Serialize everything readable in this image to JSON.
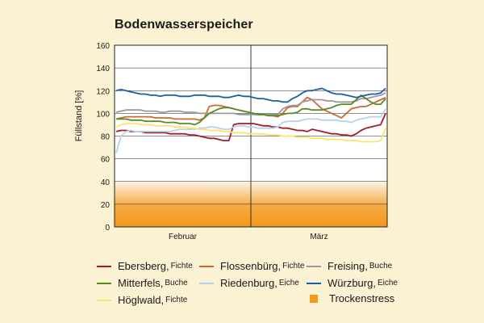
{
  "chart_data": {
    "type": "line",
    "title": "Bodenwasserspeicher",
    "ylabel": "Füllstand [%]",
    "xlabel": "",
    "ylim": [
      0,
      160
    ],
    "yticks": [
      0,
      20,
      40,
      60,
      80,
      100,
      120,
      140,
      160
    ],
    "grid": "horizontal",
    "months": [
      "Februar",
      "März"
    ],
    "x": [
      1,
      2,
      3,
      4,
      5,
      6,
      7,
      8,
      9,
      10,
      11,
      12,
      13,
      14,
      15,
      16,
      17,
      18,
      19,
      20,
      21,
      22,
      23,
      24,
      25,
      26,
      27,
      28,
      29,
      30,
      31,
      32,
      33,
      34,
      35,
      36,
      37,
      38,
      39,
      40,
      41,
      42,
      43,
      44,
      45,
      46,
      47,
      48,
      49,
      50,
      51,
      52,
      53,
      54,
      55,
      56
    ],
    "bands": [
      {
        "name": "Trockenstress",
        "color": "#f39a1e",
        "from": 0,
        "to": 40
      }
    ],
    "series": [
      {
        "name": "Ebersberg",
        "sub": "Fichte",
        "color": "#a6192e",
        "values": [
          84,
          85,
          85,
          84,
          84,
          84,
          83,
          83,
          83,
          83,
          83,
          82,
          82,
          82,
          82,
          81,
          81,
          80,
          79,
          78,
          78,
          77,
          76,
          76,
          90,
          91,
          91,
          91,
          91,
          90,
          89,
          89,
          88,
          88,
          87,
          87,
          86,
          85,
          85,
          84,
          86,
          85,
          84,
          83,
          82,
          82,
          81,
          81,
          80,
          82,
          85,
          87,
          88,
          89,
          90,
          100
        ]
      },
      {
        "name": "Flossenbürg",
        "sub": "Fichte",
        "color": "#cc6a2d",
        "values": [
          95,
          96,
          97,
          97,
          97,
          97,
          97,
          97,
          96,
          96,
          96,
          96,
          95,
          95,
          95,
          95,
          95,
          94,
          96,
          106,
          107,
          107,
          106,
          105,
          104,
          103,
          102,
          101,
          100,
          99,
          99,
          98,
          98,
          97,
          100,
          105,
          106,
          106,
          110,
          114,
          112,
          108,
          104,
          102,
          100,
          98,
          96,
          100,
          104,
          105,
          106,
          106,
          108,
          110,
          112,
          114
        ]
      },
      {
        "name": "Freising",
        "sub": "Buche",
        "color": "#999999",
        "values": [
          101,
          102,
          103,
          103,
          103,
          103,
          102,
          102,
          102,
          101,
          101,
          102,
          102,
          102,
          101,
          101,
          101,
          100,
          100,
          100,
          100,
          100,
          100,
          100,
          100,
          99,
          99,
          99,
          99,
          99,
          99,
          99,
          99,
          99,
          104,
          106,
          107,
          107,
          110,
          111,
          112,
          112,
          112,
          111,
          111,
          110,
          110,
          110,
          110,
          111,
          113,
          113,
          114,
          115,
          116,
          118
        ]
      },
      {
        "name": "Mitterfels",
        "sub": "Buche",
        "color": "#5a8a28",
        "values": [
          95,
          95,
          95,
          94,
          94,
          94,
          93,
          93,
          93,
          93,
          92,
          92,
          92,
          91,
          91,
          91,
          90,
          92,
          96,
          100,
          102,
          104,
          105,
          105,
          104,
          103,
          102,
          101,
          100,
          99,
          99,
          98,
          98,
          98,
          99,
          100,
          100,
          101,
          104,
          104,
          103,
          103,
          103,
          104,
          105,
          107,
          108,
          108,
          108,
          112,
          116,
          113,
          110,
          108,
          108,
          113
        ]
      },
      {
        "name": "Riedenburg",
        "sub": "Eiche",
        "color": "#b8d3e8",
        "values": [
          65,
          80,
          84,
          85,
          84,
          84,
          84,
          84,
          84,
          84,
          84,
          84,
          85,
          86,
          86,
          86,
          86,
          87,
          87,
          88,
          88,
          87,
          86,
          86,
          88,
          89,
          89,
          88,
          88,
          87,
          87,
          87,
          87,
          88,
          92,
          93,
          93,
          93,
          94,
          95,
          95,
          95,
          94,
          94,
          94,
          94,
          93,
          93,
          92,
          94,
          95,
          96,
          97,
          97,
          97,
          104
        ]
      },
      {
        "name": "Würzburg",
        "sub": "Eiche",
        "color": "#1d5ea2",
        "values": [
          120,
          121,
          120,
          119,
          118,
          117,
          117,
          116,
          116,
          115,
          116,
          116,
          116,
          115,
          115,
          115,
          116,
          116,
          116,
          115,
          115,
          115,
          114,
          114,
          115,
          116,
          115,
          115,
          114,
          113,
          113,
          112,
          111,
          111,
          110,
          110,
          113,
          115,
          118,
          120,
          120,
          121,
          122,
          120,
          118,
          117,
          117,
          116,
          115,
          114,
          115,
          116,
          117,
          117,
          118,
          122
        ]
      },
      {
        "name": "Höglwald",
        "sub": "Fichte",
        "color": "#fbe36b",
        "values": [
          88,
          90,
          91,
          91,
          91,
          90,
          90,
          90,
          89,
          89,
          89,
          89,
          88,
          88,
          88,
          87,
          87,
          86,
          86,
          85,
          85,
          85,
          84,
          84,
          83,
          83,
          83,
          82,
          82,
          82,
          82,
          81,
          81,
          81,
          80,
          80,
          80,
          79,
          79,
          79,
          78,
          78,
          78,
          77,
          77,
          77,
          77,
          76,
          76,
          76,
          75,
          75,
          75,
          75,
          76,
          87
        ]
      }
    ]
  }
}
